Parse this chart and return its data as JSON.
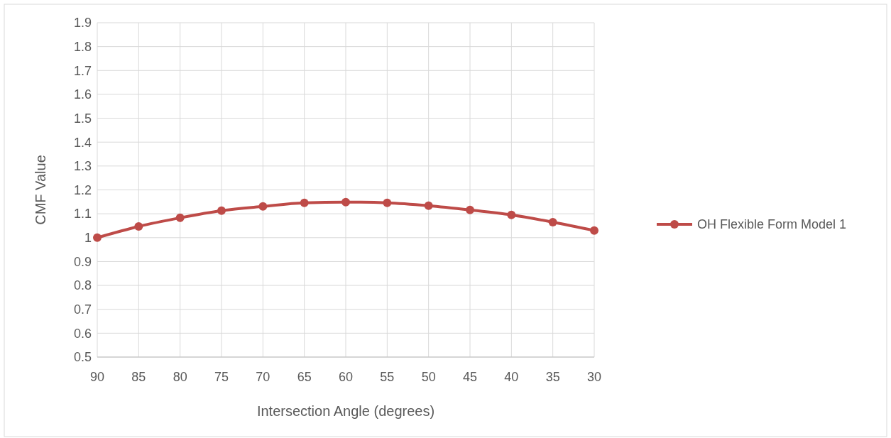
{
  "chart_data": {
    "type": "line",
    "xlabel": "Intersection Angle (degrees)",
    "ylabel": "CMF Value",
    "categories": [
      "90",
      "85",
      "80",
      "75",
      "70",
      "65",
      "60",
      "55",
      "50",
      "45",
      "40",
      "35",
      "30"
    ],
    "series": [
      {
        "name": "OH Flexible Form Model 1",
        "color": "#be4b48",
        "values": [
          1.0,
          1.047,
          1.083,
          1.113,
          1.131,
          1.146,
          1.149,
          1.146,
          1.134,
          1.116,
          1.095,
          1.065,
          1.03
        ]
      }
    ],
    "ylim": [
      0.5,
      1.9
    ],
    "yticks": [
      0.5,
      0.6,
      0.7,
      0.8,
      0.9,
      1,
      1.1,
      1.2,
      1.3,
      1.4,
      1.5,
      1.6,
      1.7,
      1.8,
      1.9
    ],
    "grid": true,
    "legend": "right",
    "marker": "circle",
    "line_style": "solid"
  }
}
